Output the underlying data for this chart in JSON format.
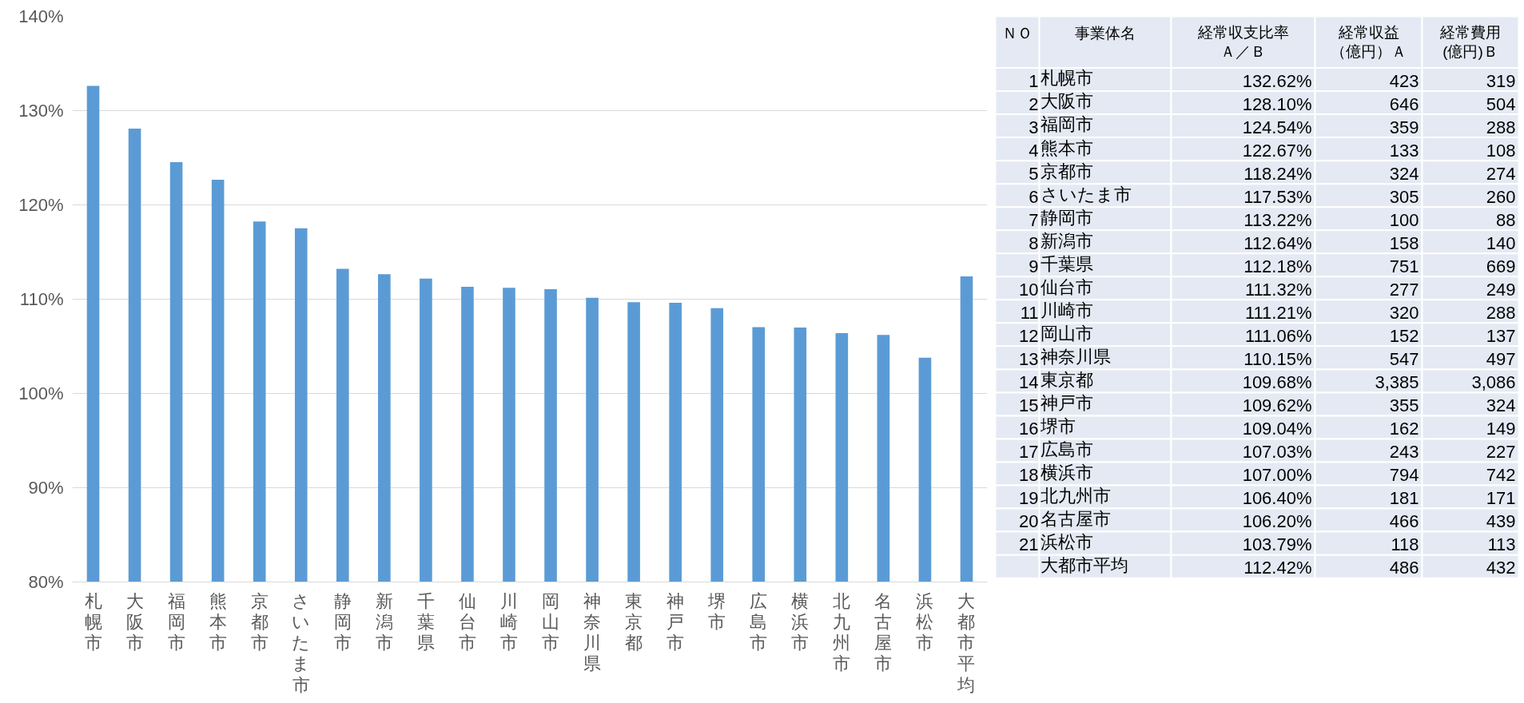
{
  "chart_data": [
    {
      "type": "bar",
      "categories": [
        "札幌市",
        "大阪市",
        "福岡市",
        "熊本市",
        "京都市",
        "さいたま市",
        "静岡市",
        "新潟市",
        "千葉県",
        "仙台市",
        "川崎市",
        "岡山市",
        "神奈川県",
        "東京都",
        "神戸市",
        "堺市",
        "広島市",
        "横浜市",
        "北九州市",
        "名古屋市",
        "浜松市",
        "大都市平均"
      ],
      "values": [
        132.62,
        128.1,
        124.54,
        122.67,
        118.24,
        117.53,
        113.22,
        112.64,
        112.18,
        111.32,
        111.21,
        111.06,
        110.15,
        109.68,
        109.62,
        109.04,
        107.03,
        107.0,
        106.4,
        106.2,
        103.79,
        112.42
      ],
      "color": "#5b9bd5",
      "ylim": [
        80,
        140
      ],
      "yticks": [
        {
          "value": 80,
          "label": "80%"
        },
        {
          "value": 90,
          "label": "90%"
        },
        {
          "value": 100,
          "label": "100%"
        },
        {
          "value": 110,
          "label": "110%"
        },
        {
          "value": 120,
          "label": "120%"
        },
        {
          "value": 130,
          "label": "130%"
        },
        {
          "value": 140,
          "label": "140%"
        }
      ],
      "grid": "y"
    },
    {
      "type": "other",
      "ylabel": "事業体名",
      "data_labels": true,
      "categories": [
        "札幌市",
        "大阪市",
        "福岡市",
        "熊本市",
        "京都市",
        "さいたま市",
        "静岡市",
        "新潟市",
        "千葉県",
        "仙台市",
        "川崎市",
        "岡山市",
        "神奈川県",
        "東京都",
        "神戸市",
        "堺市",
        "広島市",
        "横浜市",
        "北九州市",
        "名古屋市",
        "浜松市",
        "大都市平均"
      ],
      "series": [
        {
          "name": "ＮＯ",
          "values": [
            1,
            2,
            3,
            4,
            5,
            6,
            7,
            8,
            9,
            10,
            11,
            12,
            13,
            14,
            15,
            16,
            17,
            18,
            19,
            20,
            21,
            null
          ]
        },
        {
          "name": "経常収支比率Ａ／Ｂ",
          "values": [
            132.62,
            128.1,
            124.54,
            122.67,
            118.24,
            117.53,
            113.22,
            112.64,
            112.18,
            111.32,
            111.21,
            111.06,
            110.15,
            109.68,
            109.62,
            109.04,
            107.03,
            107.0,
            106.4,
            106.2,
            103.79,
            112.42
          ],
          "value_labels": [
            "132.62%",
            "128.10%",
            "124.54%",
            "122.67%",
            "118.24%",
            "117.53%",
            "113.22%",
            "112.64%",
            "112.18%",
            "111.32%",
            "111.21%",
            "111.06%",
            "110.15%",
            "109.68%",
            "109.62%",
            "109.04%",
            "107.03%",
            "107.00%",
            "106.40%",
            "106.20%",
            "103.79%",
            "112.42%"
          ]
        },
        {
          "name": "経常収益（億円）Ａ",
          "values": [
            423,
            646,
            359,
            133,
            324,
            305,
            100,
            158,
            751,
            277,
            320,
            152,
            547,
            3385,
            355,
            162,
            243,
            794,
            181,
            466,
            118,
            486
          ],
          "value_labels": [
            "423",
            "646",
            "359",
            "133",
            "324",
            "305",
            "100",
            "158",
            "751",
            "277",
            "320",
            "152",
            "547",
            "3,385",
            "355",
            "162",
            "243",
            "794",
            "181",
            "466",
            "118",
            "486"
          ]
        },
        {
          "name": "経常費用(億円)Ｂ",
          "values": [
            319,
            504,
            288,
            108,
            274,
            260,
            88,
            140,
            669,
            249,
            288,
            137,
            497,
            3086,
            324,
            149,
            227,
            742,
            171,
            439,
            113,
            432
          ],
          "value_labels": [
            "319",
            "504",
            "288",
            "108",
            "274",
            "260",
            "88",
            "140",
            "669",
            "249",
            "288",
            "137",
            "497",
            "3,086",
            "324",
            "149",
            "227",
            "742",
            "171",
            "439",
            "113",
            "432"
          ]
        }
      ]
    }
  ]
}
